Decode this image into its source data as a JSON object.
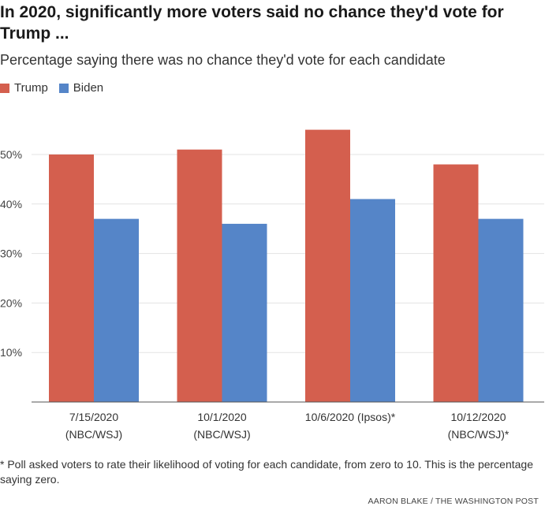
{
  "chart_data": {
    "type": "bar",
    "title": "In 2020, significantly more voters said no chance they'd vote for Trump ...",
    "subtitle": "Percentage saying there was no chance they'd vote for each candidate",
    "categories": [
      [
        "7/15/2020",
        "(NBC/WSJ)"
      ],
      [
        "10/1/2020",
        "(NBC/WSJ)"
      ],
      [
        "10/6/2020 (Ipsos)*"
      ],
      [
        "10/12/2020",
        "(NBC/WSJ)*"
      ]
    ],
    "series": [
      {
        "name": "Trump",
        "color": "#d45f4e",
        "values": [
          50,
          51,
          55,
          48
        ]
      },
      {
        "name": "Biden",
        "color": "#5585c8",
        "values": [
          37,
          36,
          41,
          37
        ]
      }
    ],
    "ylim": [
      0,
      60
    ],
    "yticks": [
      10,
      20,
      30,
      40,
      50
    ],
    "ytick_labels": [
      "10%",
      "20%",
      "30%",
      "40%",
      "50%"
    ],
    "grid": true,
    "legend_position": "top-left"
  },
  "footnote": "* Poll asked voters to rate their likelihood of voting for each candidate, from zero to 10. This is the percentage saying zero.",
  "credit": "AARON BLAKE / THE WASHINGTON POST"
}
